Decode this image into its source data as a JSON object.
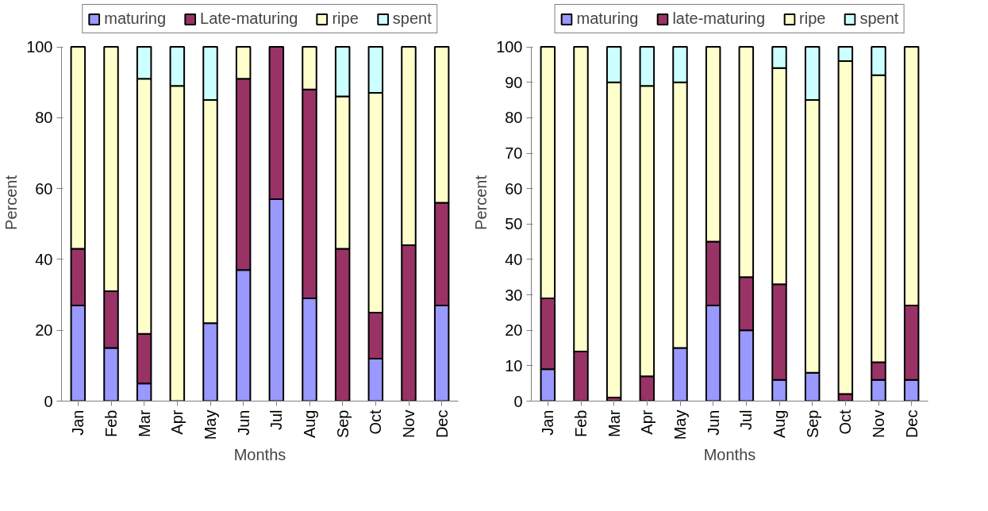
{
  "chart_data": [
    {
      "type": "bar",
      "stacked": true,
      "xlabel": "Months",
      "ylabel": "Percent",
      "legend": "top",
      "grid": false,
      "categories": [
        "Jan",
        "Feb",
        "Mar",
        "Apr",
        "May",
        "Jun",
        "Jul",
        "Aug",
        "Sep",
        "Oct",
        "Nov",
        "Dec"
      ],
      "ylim": [
        0,
        100
      ],
      "yticks": [
        0,
        20,
        40,
        60,
        80,
        100
      ],
      "series": [
        {
          "name": "maturing",
          "color": "#9999ff",
          "values": [
            27,
            15,
            5,
            0,
            22,
            37,
            57,
            29,
            0,
            12,
            0,
            27
          ]
        },
        {
          "name": "Late-maturing",
          "color": "#993366",
          "values": [
            16,
            16,
            14,
            0,
            0,
            54,
            43,
            59,
            43,
            13,
            44,
            29
          ]
        },
        {
          "name": "ripe",
          "color": "#ffffcc",
          "values": [
            57,
            69,
            72,
            89,
            63,
            9,
            0,
            12,
            43,
            62,
            56,
            44
          ]
        },
        {
          "name": "spent",
          "color": "#ccffff",
          "values": [
            0,
            0,
            9,
            11,
            15,
            0,
            0,
            0,
            14,
            13,
            0,
            0
          ]
        }
      ]
    },
    {
      "type": "bar",
      "stacked": true,
      "xlabel": "Months",
      "ylabel": "Percent",
      "legend": "top",
      "grid": false,
      "categories": [
        "Jan",
        "Feb",
        "Mar",
        "Apr",
        "May",
        "Jun",
        "Jul",
        "Aug",
        "Sep",
        "Oct",
        "Nov",
        "Dec"
      ],
      "ylim": [
        0,
        100
      ],
      "yticks": [
        0,
        10,
        20,
        30,
        40,
        50,
        60,
        70,
        80,
        90,
        100
      ],
      "series": [
        {
          "name": "maturing",
          "color": "#9999ff",
          "values": [
            9,
            0,
            0,
            0,
            15,
            27,
            20,
            6,
            8,
            0,
            6,
            6
          ]
        },
        {
          "name": "late-maturing",
          "color": "#993366",
          "values": [
            20,
            14,
            1,
            7,
            0,
            18,
            15,
            27,
            0,
            2,
            5,
            21
          ]
        },
        {
          "name": "ripe",
          "color": "#ffffcc",
          "values": [
            71,
            86,
            89,
            82,
            75,
            55,
            65,
            61,
            77,
            94,
            81,
            73
          ]
        },
        {
          "name": "spent",
          "color": "#ccffff",
          "values": [
            0,
            0,
            10,
            11,
            10,
            0,
            0,
            6,
            15,
            4,
            8,
            0
          ]
        }
      ]
    }
  ]
}
